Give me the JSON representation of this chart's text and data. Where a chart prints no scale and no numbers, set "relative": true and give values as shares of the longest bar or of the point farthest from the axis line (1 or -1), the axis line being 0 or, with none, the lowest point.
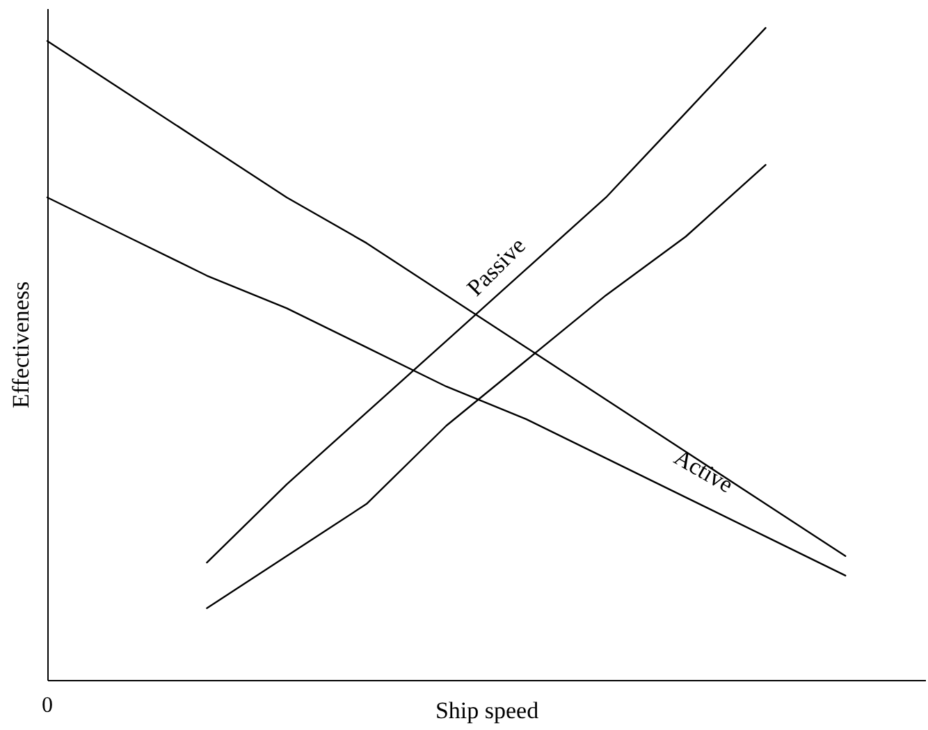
{
  "chart_data": {
    "type": "line",
    "relative": true,
    "xlabel": "Ship speed",
    "ylabel": "Effectiveness",
    "annotations": [
      "0"
    ],
    "categories": [
      null,
      null,
      null,
      null,
      null,
      null,
      null,
      null,
      null,
      null,
      null
    ],
    "marker": "none",
    "series": [
      {
        "name": "Active",
        "color": "#000000",
        "values": [
          0.98,
          0.9,
          0.82,
          0.74,
          0.67,
          0.59,
          0.51,
          0.43,
          0.35,
          0.27,
          0.19
        ]
      },
      {
        "color": "#000000",
        "values": [
          0.74,
          0.68,
          0.62,
          0.57,
          0.51,
          0.45,
          0.4,
          0.34,
          0.28,
          0.22,
          0.16
        ]
      },
      {
        "name": "Passive",
        "color": "#000000",
        "values": [
          null,
          null,
          0.18,
          0.3,
          0.41,
          0.52,
          0.63,
          0.74,
          0.87,
          1.0,
          null
        ]
      },
      {
        "color": "#000000",
        "values": [
          null,
          null,
          0.11,
          0.19,
          0.27,
          0.39,
          0.49,
          0.59,
          0.68,
          0.79,
          null
        ]
      }
    ]
  }
}
